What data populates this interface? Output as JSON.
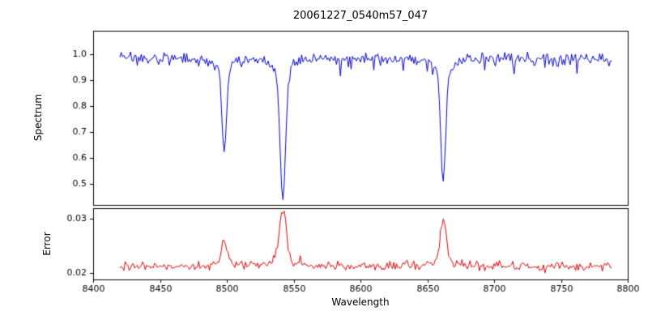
{
  "chart_data": {
    "type": "line",
    "title": "20061227_0540m57_047",
    "xlabel": "Wavelength",
    "x_range": [
      8400,
      8800
    ],
    "x_data_range": [
      8420,
      8788
    ],
    "x_step": 1,
    "xticks": [
      8400,
      8450,
      8500,
      8550,
      8600,
      8650,
      8700,
      8750,
      8800
    ],
    "xtick_decimals": 0,
    "seed": 20061227,
    "grid": false,
    "legend": "none",
    "panels": [
      {
        "name": "spectrum",
        "ylabel": "Spectrum",
        "color": "#0000cc",
        "ylim": [
          0.42,
          1.09
        ],
        "yticks": [
          0.5,
          0.6,
          0.7,
          0.8,
          0.9,
          1.0
        ],
        "ytick_decimals": 1,
        "continuum": 0.985,
        "noise_sigma": 0.012,
        "absorption_lines": [
          {
            "center": 8498,
            "depth": 0.365,
            "core_width": 1.6,
            "wing_width": 3.0,
            "min_value": 0.62
          },
          {
            "center": 8542,
            "depth": 0.55,
            "core_width": 2.0,
            "wing_width": 4.0,
            "min_value": 0.43
          },
          {
            "center": 8662,
            "depth": 0.47,
            "core_width": 1.8,
            "wing_width": 3.5,
            "min_value": 0.515
          }
        ]
      },
      {
        "name": "error",
        "ylabel": "Error",
        "color": "#dd0000",
        "ylim": [
          0.0188,
          0.0319
        ],
        "yticks": [
          0.02,
          0.03
        ],
        "ytick_decimals": 2,
        "baseline": 0.0212,
        "noise_sigma": 0.0004,
        "peaks": [
          {
            "center": 8498,
            "height": 0.0051,
            "width": 2.0,
            "max_value": 0.0263
          },
          {
            "center": 8542,
            "height": 0.0102,
            "width": 2.5,
            "max_value": 0.0314
          },
          {
            "center": 8662,
            "height": 0.0082,
            "width": 2.2,
            "max_value": 0.0294
          }
        ]
      }
    ]
  }
}
